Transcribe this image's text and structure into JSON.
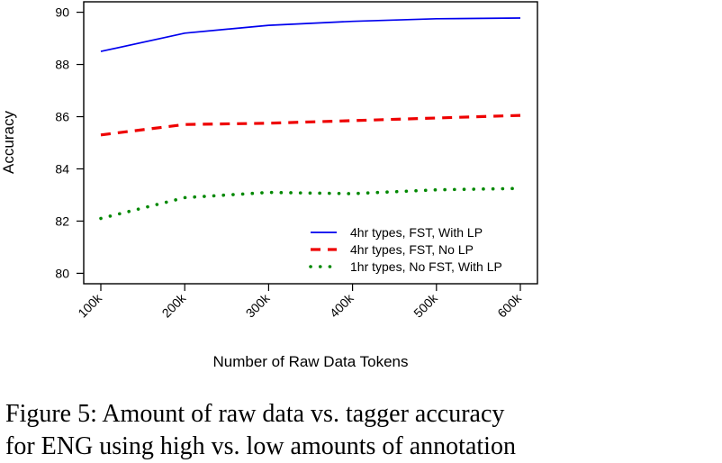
{
  "chart_data": {
    "type": "line",
    "title": "",
    "xlabel": "Number of Raw Data Tokens",
    "ylabel": "Accuracy",
    "categories": [
      "100k",
      "200k",
      "300k",
      "400k",
      "500k",
      "600k"
    ],
    "ylim": [
      79.6,
      90.4
    ],
    "yticks": [
      "80",
      "82",
      "84",
      "86",
      "88",
      "90"
    ],
    "grid": false,
    "legend_position": "bottom-right",
    "series": [
      {
        "name": "4hr types, FST, With LP",
        "values": [
          88.5,
          89.2,
          89.5,
          89.65,
          89.75,
          89.78
        ],
        "color": "#0000ee",
        "style": "solid"
      },
      {
        "name": "4hr types, FST, No LP",
        "values": [
          85.3,
          85.7,
          85.75,
          85.85,
          85.95,
          86.05
        ],
        "color": "#ee0000",
        "style": "dashed"
      },
      {
        "name": "1hr types, No FST, With LP",
        "values": [
          82.1,
          82.9,
          83.1,
          83.05,
          83.2,
          83.25
        ],
        "color": "#008800",
        "style": "dotted"
      }
    ]
  },
  "caption": {
    "line1": "Figure 5: Amount of raw data vs. tagger accuracy",
    "line2": "for ENG using high vs. low amounts of annotation"
  }
}
